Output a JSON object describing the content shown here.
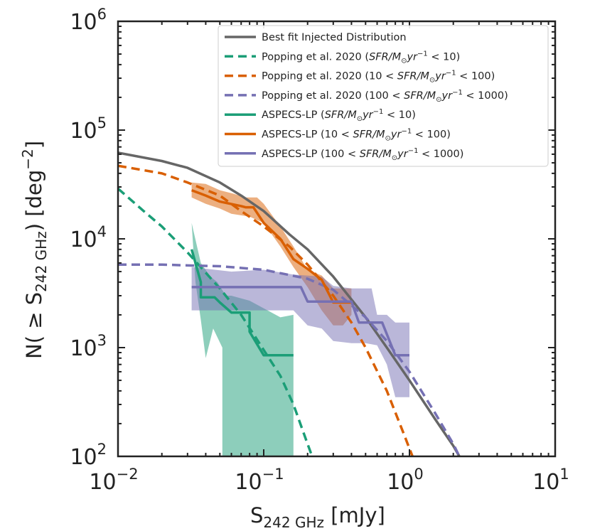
{
  "chart_data": {
    "type": "line",
    "xscale": "log",
    "yscale": "log",
    "xlim": [
      0.01,
      10
    ],
    "ylim": [
      100,
      1000000
    ],
    "grid": false,
    "xlabel": {
      "main": "S",
      "sub": "242 GHz",
      "rest": " [mJy]"
    },
    "ylabel": {
      "pre": "N( ≥ S",
      "sub": "242 GHz",
      "post": ") [deg",
      "sup": "−2",
      "end": "]"
    },
    "x_ticks": [
      {
        "value": 0.01,
        "base": "10",
        "exp": "−2"
      },
      {
        "value": 0.1,
        "base": "10",
        "exp": "−1"
      },
      {
        "value": 1,
        "base": "10",
        "exp": "0"
      },
      {
        "value": 10,
        "base": "10",
        "exp": "1"
      }
    ],
    "y_ticks": [
      {
        "value": 100,
        "base": "10",
        "exp": "2"
      },
      {
        "value": 1000,
        "base": "10",
        "exp": "3"
      },
      {
        "value": 10000,
        "base": "10",
        "exp": "4"
      },
      {
        "value": 100000,
        "base": "10",
        "exp": "5"
      },
      {
        "value": 1000000,
        "base": "10",
        "exp": "6"
      }
    ],
    "legend_position": "top-right",
    "colors": {
      "best_fit": "#666666",
      "low": "#1b9e77",
      "mid": "#d95f02",
      "high": "#7570b3"
    },
    "bands": [
      {
        "id": "low",
        "color": "#1b9e77",
        "opacity": 0.5,
        "points": [
          [
            0.032,
            14000
          ],
          [
            0.037,
            6000
          ],
          [
            0.043,
            4500
          ],
          [
            0.048,
            4000
          ],
          [
            0.055,
            3000
          ],
          [
            0.06,
            3000
          ],
          [
            0.08,
            2700
          ],
          [
            0.1,
            2300
          ],
          [
            0.13,
            1900
          ],
          [
            0.16,
            2000
          ],
          [
            0.16,
            100
          ],
          [
            0.052,
            100
          ],
          [
            0.052,
            1000
          ],
          [
            0.045,
            1500
          ],
          [
            0.04,
            800
          ],
          [
            0.037,
            1800
          ],
          [
            0.034,
            4000
          ]
        ]
      },
      {
        "id": "mid",
        "color": "#d95f02",
        "opacity": 0.5,
        "points": [
          [
            0.032,
            33000
          ],
          [
            0.04,
            32000
          ],
          [
            0.05,
            28000
          ],
          [
            0.062,
            26000
          ],
          [
            0.075,
            24000
          ],
          [
            0.09,
            24000
          ],
          [
            0.1,
            21000
          ],
          [
            0.13,
            13000
          ],
          [
            0.16,
            8500
          ],
          [
            0.2,
            5200
          ],
          [
            0.25,
            4600
          ],
          [
            0.3,
            3500
          ],
          [
            0.4,
            3500
          ],
          [
            0.4,
            2000
          ],
          [
            0.35,
            1600
          ],
          [
            0.3,
            1600
          ],
          [
            0.25,
            2200
          ],
          [
            0.2,
            3600
          ],
          [
            0.16,
            5500
          ],
          [
            0.13,
            8500
          ],
          [
            0.1,
            14000
          ],
          [
            0.08,
            16000
          ],
          [
            0.06,
            17000
          ],
          [
            0.05,
            19000
          ],
          [
            0.04,
            21000
          ],
          [
            0.032,
            24000
          ]
        ]
      },
      {
        "id": "high",
        "color": "#7570b3",
        "opacity": 0.5,
        "points": [
          [
            0.032,
            5500
          ],
          [
            0.06,
            5000
          ],
          [
            0.1,
            5200
          ],
          [
            0.16,
            4700
          ],
          [
            0.25,
            4500
          ],
          [
            0.3,
            3700
          ],
          [
            0.4,
            3500
          ],
          [
            0.55,
            3500
          ],
          [
            0.6,
            2000
          ],
          [
            0.7,
            2000
          ],
          [
            0.8,
            1700
          ],
          [
            1.0,
            1700
          ],
          [
            1.0,
            350
          ],
          [
            0.8,
            350
          ],
          [
            0.7,
            700
          ],
          [
            0.6,
            1050
          ],
          [
            0.5,
            1100
          ],
          [
            0.4,
            1100
          ],
          [
            0.3,
            1150
          ],
          [
            0.25,
            1500
          ],
          [
            0.2,
            1600
          ],
          [
            0.16,
            2200
          ],
          [
            0.1,
            2200
          ],
          [
            0.06,
            2200
          ],
          [
            0.032,
            2200
          ]
        ]
      }
    ],
    "series": [
      {
        "id": "best_fit",
        "name": "Best fit Injected Distribution",
        "style": "solid",
        "color": "#666666",
        "x": [
          0.01,
          0.02,
          0.03,
          0.05,
          0.07,
          0.1,
          0.15,
          0.2,
          0.3,
          0.5,
          0.7,
          1.0,
          1.5,
          2.0,
          2.2
        ],
        "y": [
          62000,
          52000,
          45000,
          33000,
          25000,
          18000,
          11000,
          8000,
          4500,
          1900,
          1000,
          500,
          220,
          125,
          100
        ]
      },
      {
        "id": "popping_low",
        "name": "Popping et al. 2020 (",
        "name_math": "SFR/M",
        "name_sub": "⊙",
        "name_math2": "yr",
        "name_sup": "−1",
        "name_end": " < 10)",
        "style": "dashed",
        "color": "#1b9e77",
        "x": [
          0.01,
          0.015,
          0.02,
          0.03,
          0.05,
          0.07,
          0.1,
          0.13,
          0.16,
          0.2,
          0.215
        ],
        "y": [
          29000,
          18000,
          13000,
          7500,
          3500,
          2000,
          950,
          550,
          300,
          130,
          100
        ]
      },
      {
        "id": "popping_mid",
        "name": "Popping et al. 2020 (10 < ",
        "name_math": "SFR/M",
        "name_sub": "⊙",
        "name_math2": "yr",
        "name_sup": "−1",
        "name_end": " < 100)",
        "style": "dashed",
        "color": "#d95f02",
        "x": [
          0.01,
          0.02,
          0.03,
          0.05,
          0.07,
          0.1,
          0.15,
          0.2,
          0.3,
          0.4,
          0.5,
          0.7,
          0.9,
          1.05
        ],
        "y": [
          47000,
          40000,
          33000,
          25000,
          18000,
          13000,
          8500,
          5800,
          3000,
          1700,
          1000,
          400,
          170,
          100
        ]
      },
      {
        "id": "popping_high",
        "name": "Popping et al. 2020 (100 < ",
        "name_math": "SFR/M",
        "name_sub": "⊙",
        "name_math2": "yr",
        "name_sup": "−1",
        "name_end": " < 1000)",
        "style": "dashed",
        "color": "#7570b3",
        "x": [
          0.01,
          0.02,
          0.03,
          0.05,
          0.1,
          0.2,
          0.3,
          0.5,
          0.7,
          1.0,
          1.5,
          2.0,
          2.2
        ],
        "y": [
          5800,
          5800,
          5700,
          5600,
          5200,
          4300,
          3400,
          1900,
          1150,
          600,
          250,
          130,
          100
        ]
      },
      {
        "id": "aspecs_low",
        "name": "ASPECS-LP (",
        "name_math": "SFR/M",
        "name_sub": "⊙",
        "name_math2": "yr",
        "name_sup": "−1",
        "name_end": " < 10)",
        "style": "solid",
        "color": "#1b9e77",
        "x": [
          0.032,
          0.037,
          0.037,
          0.046,
          0.05,
          0.06,
          0.06,
          0.08,
          0.08,
          0.1,
          0.1,
          0.16
        ],
        "y": [
          8000,
          4000,
          2900,
          2900,
          2600,
          2100,
          2100,
          2100,
          1400,
          850,
          850,
          850
        ]
      },
      {
        "id": "aspecs_mid",
        "name": "ASPECS-LP (10 < ",
        "name_math": "SFR/M",
        "name_sub": "⊙",
        "name_math2": "yr",
        "name_sup": "−1",
        "name_end": " < 100)",
        "style": "solid",
        "color": "#d95f02",
        "x": [
          0.032,
          0.04,
          0.05,
          0.07,
          0.075,
          0.085,
          0.1,
          0.13,
          0.16,
          0.2,
          0.25,
          0.3,
          0.4
        ],
        "y": [
          28000,
          25000,
          22000,
          20000,
          19500,
          19500,
          14000,
          10000,
          6500,
          5300,
          4200,
          2600,
          2600
        ]
      },
      {
        "id": "aspecs_high",
        "name": "ASPECS-LP (100 < ",
        "name_math": "SFR/M",
        "name_sub": "⊙",
        "name_math2": "yr",
        "name_sup": "−1",
        "name_end": " < 1000)",
        "style": "solid",
        "color": "#7570b3",
        "x": [
          0.032,
          0.18,
          0.2,
          0.4,
          0.45,
          0.65,
          0.8,
          1.0
        ],
        "y": [
          3600,
          3600,
          2650,
          2650,
          1700,
          1700,
          850,
          850
        ]
      }
    ]
  }
}
